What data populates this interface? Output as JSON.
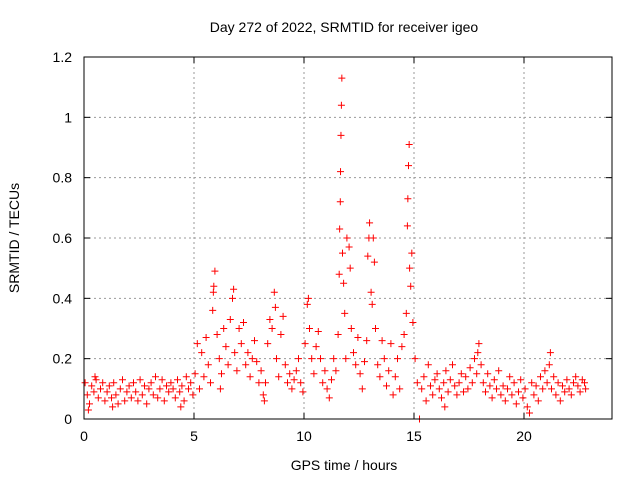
{
  "chart_data": {
    "type": "scatter",
    "title": "Day 272 of 2022, SRMTID for receiver igeo",
    "xlabel": "GPS time / hours",
    "ylabel": "SRMTID / TECUs",
    "xlim": [
      0,
      24
    ],
    "ylim": [
      0,
      1.2
    ],
    "xticks": [
      0,
      5,
      10,
      15,
      20
    ],
    "xtick_labels": [
      "0",
      "5",
      "10",
      "15",
      "20"
    ],
    "yticks": [
      0,
      0.2,
      0.4,
      0.6,
      0.8,
      1.0,
      1.2
    ],
    "ytick_labels": [
      "0",
      "0.2",
      "0.4",
      "0.6",
      "0.8",
      "1",
      "1.2"
    ],
    "grid": true,
    "marker": "+",
    "color": "#ff0000",
    "series": [
      {
        "name": "SRMTID",
        "points": [
          [
            0.05,
            0.12
          ],
          [
            0.15,
            0.08
          ],
          [
            0.25,
            0.05
          ],
          [
            0.35,
            0.11
          ],
          [
            0.45,
            0.09
          ],
          [
            0.55,
            0.13
          ],
          [
            0.65,
            0.07
          ],
          [
            0.75,
            0.1
          ],
          [
            0.85,
            0.12
          ],
          [
            0.95,
            0.06
          ],
          [
            0.2,
            0.03
          ],
          [
            0.5,
            0.14
          ],
          [
            1.05,
            0.09
          ],
          [
            1.15,
            0.11
          ],
          [
            1.25,
            0.07
          ],
          [
            1.35,
            0.12
          ],
          [
            1.45,
            0.08
          ],
          [
            1.55,
            0.05
          ],
          [
            1.65,
            0.1
          ],
          [
            1.75,
            0.13
          ],
          [
            1.85,
            0.06
          ],
          [
            1.95,
            0.09
          ],
          [
            1.3,
            0.04
          ],
          [
            2.05,
            0.11
          ],
          [
            2.15,
            0.07
          ],
          [
            2.25,
            0.12
          ],
          [
            2.35,
            0.09
          ],
          [
            2.45,
            0.06
          ],
          [
            2.55,
            0.13
          ],
          [
            2.65,
            0.08
          ],
          [
            2.75,
            0.11
          ],
          [
            2.85,
            0.05
          ],
          [
            2.95,
            0.1
          ],
          [
            3.05,
            0.12
          ],
          [
            3.15,
            0.08
          ],
          [
            3.25,
            0.14
          ],
          [
            3.35,
            0.07
          ],
          [
            3.45,
            0.1
          ],
          [
            3.55,
            0.13
          ],
          [
            3.65,
            0.06
          ],
          [
            3.75,
            0.11
          ],
          [
            3.85,
            0.09
          ],
          [
            3.95,
            0.12
          ],
          [
            4.05,
            0.1
          ],
          [
            4.15,
            0.07
          ],
          [
            4.25,
            0.13
          ],
          [
            4.35,
            0.09
          ],
          [
            4.45,
            0.11
          ],
          [
            4.55,
            0.06
          ],
          [
            4.65,
            0.14
          ],
          [
            4.75,
            0.1
          ],
          [
            4.85,
            0.12
          ],
          [
            4.95,
            0.08
          ],
          [
            4.4,
            0.04
          ],
          [
            5.05,
            0.15
          ],
          [
            5.15,
            0.25
          ],
          [
            5.25,
            0.1
          ],
          [
            5.35,
            0.22
          ],
          [
            5.45,
            0.14
          ],
          [
            5.55,
            0.27
          ],
          [
            5.65,
            0.18
          ],
          [
            5.75,
            0.12
          ],
          [
            5.85,
            0.36
          ],
          [
            5.9,
            0.44
          ],
          [
            5.95,
            0.49
          ],
          [
            5.88,
            0.42
          ],
          [
            6.05,
            0.28
          ],
          [
            6.15,
            0.2
          ],
          [
            6.25,
            0.15
          ],
          [
            6.35,
            0.3
          ],
          [
            6.45,
            0.24
          ],
          [
            6.55,
            0.18
          ],
          [
            6.65,
            0.33
          ],
          [
            6.75,
            0.4
          ],
          [
            6.8,
            0.43
          ],
          [
            6.85,
            0.22
          ],
          [
            6.95,
            0.16
          ],
          [
            6.2,
            0.1
          ],
          [
            7.05,
            0.3
          ],
          [
            7.15,
            0.25
          ],
          [
            7.25,
            0.32
          ],
          [
            7.35,
            0.18
          ],
          [
            7.45,
            0.22
          ],
          [
            7.55,
            0.14
          ],
          [
            7.65,
            0.2
          ],
          [
            7.75,
            0.26
          ],
          [
            7.85,
            0.19
          ],
          [
            7.95,
            0.12
          ],
          [
            8.05,
            0.16
          ],
          [
            8.15,
            0.08
          ],
          [
            8.25,
            0.12
          ],
          [
            8.35,
            0.25
          ],
          [
            8.45,
            0.33
          ],
          [
            8.55,
            0.3
          ],
          [
            8.65,
            0.42
          ],
          [
            8.7,
            0.37
          ],
          [
            8.75,
            0.2
          ],
          [
            8.85,
            0.14
          ],
          [
            8.95,
            0.28
          ],
          [
            8.2,
            0.06
          ],
          [
            9.05,
            0.34
          ],
          [
            9.15,
            0.18
          ],
          [
            9.25,
            0.12
          ],
          [
            9.35,
            0.15
          ],
          [
            9.45,
            0.1
          ],
          [
            9.55,
            0.13
          ],
          [
            9.65,
            0.16
          ],
          [
            9.75,
            0.2
          ],
          [
            9.85,
            0.12
          ],
          [
            9.95,
            0.09
          ],
          [
            10.05,
            0.25
          ],
          [
            10.15,
            0.38
          ],
          [
            10.2,
            0.4
          ],
          [
            10.25,
            0.3
          ],
          [
            10.35,
            0.2
          ],
          [
            10.45,
            0.15
          ],
          [
            10.55,
            0.24
          ],
          [
            10.65,
            0.29
          ],
          [
            10.75,
            0.2
          ],
          [
            10.85,
            0.12
          ],
          [
            10.95,
            0.16
          ],
          [
            11.05,
            0.1
          ],
          [
            11.15,
            0.07
          ],
          [
            11.25,
            0.13
          ],
          [
            11.35,
            0.2
          ],
          [
            11.45,
            0.16
          ],
          [
            11.55,
            0.28
          ],
          [
            11.6,
            0.48
          ],
          [
            11.62,
            0.63
          ],
          [
            11.65,
            0.72
          ],
          [
            11.66,
            0.82
          ],
          [
            11.68,
            0.94
          ],
          [
            11.7,
            1.04
          ],
          [
            11.72,
            1.13
          ],
          [
            11.75,
            0.55
          ],
          [
            11.8,
            0.45
          ],
          [
            11.85,
            0.35
          ],
          [
            11.9,
            0.2
          ],
          [
            11.95,
            0.6
          ],
          [
            12.05,
            0.57
          ],
          [
            12.1,
            0.5
          ],
          [
            12.15,
            0.3
          ],
          [
            12.25,
            0.22
          ],
          [
            12.35,
            0.18
          ],
          [
            12.45,
            0.27
          ],
          [
            12.55,
            0.15
          ],
          [
            12.65,
            0.1
          ],
          [
            12.75,
            0.19
          ],
          [
            12.85,
            0.26
          ],
          [
            12.9,
            0.54
          ],
          [
            12.95,
            0.6
          ],
          [
            12.98,
            0.65
          ],
          [
            13.05,
            0.42
          ],
          [
            13.1,
            0.38
          ],
          [
            13.15,
            0.6
          ],
          [
            13.2,
            0.52
          ],
          [
            13.25,
            0.3
          ],
          [
            13.35,
            0.18
          ],
          [
            13.45,
            0.14
          ],
          [
            13.55,
            0.26
          ],
          [
            13.65,
            0.2
          ],
          [
            13.75,
            0.11
          ],
          [
            13.85,
            0.16
          ],
          [
            13.95,
            0.25
          ],
          [
            14.05,
            0.08
          ],
          [
            14.15,
            0.14
          ],
          [
            14.25,
            0.2
          ],
          [
            14.35,
            0.1
          ],
          [
            14.45,
            0.24
          ],
          [
            14.55,
            0.28
          ],
          [
            14.65,
            0.35
          ],
          [
            14.7,
            0.64
          ],
          [
            14.72,
            0.73
          ],
          [
            14.75,
            0.84
          ],
          [
            14.78,
            0.91
          ],
          [
            14.8,
            0.5
          ],
          [
            14.85,
            0.44
          ],
          [
            14.9,
            0.55
          ],
          [
            14.95,
            0.32
          ],
          [
            15.05,
            0.2
          ],
          [
            15.15,
            0.12
          ],
          [
            15.25,
            0.0
          ],
          [
            15.35,
            0.1
          ],
          [
            15.45,
            0.14
          ],
          [
            15.55,
            0.06
          ],
          [
            15.65,
            0.18
          ],
          [
            15.75,
            0.11
          ],
          [
            15.85,
            0.08
          ],
          [
            15.95,
            0.13
          ],
          [
            16.05,
            0.15
          ],
          [
            16.15,
            0.1
          ],
          [
            16.25,
            0.07
          ],
          [
            16.35,
            0.12
          ],
          [
            16.45,
            0.16
          ],
          [
            16.55,
            0.09
          ],
          [
            16.65,
            0.13
          ],
          [
            16.75,
            0.18
          ],
          [
            16.85,
            0.11
          ],
          [
            16.95,
            0.08
          ],
          [
            16.4,
            0.04
          ],
          [
            17.05,
            0.12
          ],
          [
            17.15,
            0.15
          ],
          [
            17.25,
            0.09
          ],
          [
            17.35,
            0.14
          ],
          [
            17.45,
            0.1
          ],
          [
            17.55,
            0.17
          ],
          [
            17.65,
            0.12
          ],
          [
            17.75,
            0.2
          ],
          [
            17.85,
            0.15
          ],
          [
            17.95,
            0.25
          ],
          [
            17.9,
            0.22
          ],
          [
            18.05,
            0.18
          ],
          [
            18.15,
            0.12
          ],
          [
            18.25,
            0.09
          ],
          [
            18.35,
            0.15
          ],
          [
            18.45,
            0.11
          ],
          [
            18.55,
            0.07
          ],
          [
            18.65,
            0.13
          ],
          [
            18.75,
            0.1
          ],
          [
            18.85,
            0.16
          ],
          [
            18.95,
            0.08
          ],
          [
            19.05,
            0.11
          ],
          [
            19.15,
            0.06
          ],
          [
            19.25,
            0.1
          ],
          [
            19.35,
            0.14
          ],
          [
            19.45,
            0.08
          ],
          [
            19.55,
            0.12
          ],
          [
            19.65,
            0.05
          ],
          [
            19.75,
            0.09
          ],
          [
            19.85,
            0.13
          ],
          [
            19.95,
            0.07
          ],
          [
            20.05,
            0.1
          ],
          [
            20.15,
            0.04
          ],
          [
            20.25,
            0.02
          ],
          [
            20.35,
            0.12
          ],
          [
            20.45,
            0.08
          ],
          [
            20.55,
            0.11
          ],
          [
            20.65,
            0.06
          ],
          [
            20.75,
            0.14
          ],
          [
            20.85,
            0.1
          ],
          [
            20.95,
            0.16
          ],
          [
            21.05,
            0.12
          ],
          [
            21.15,
            0.18
          ],
          [
            21.2,
            0.22
          ],
          [
            21.25,
            0.1
          ],
          [
            21.35,
            0.14
          ],
          [
            21.45,
            0.08
          ],
          [
            21.55,
            0.12
          ],
          [
            21.65,
            0.06
          ],
          [
            21.75,
            0.11
          ],
          [
            21.85,
            0.09
          ],
          [
            21.95,
            0.13
          ],
          [
            22.05,
            0.1
          ],
          [
            22.15,
            0.08
          ],
          [
            22.25,
            0.12
          ],
          [
            22.35,
            0.14
          ],
          [
            22.45,
            0.11
          ],
          [
            22.55,
            0.09
          ],
          [
            22.65,
            0.13
          ],
          [
            22.75,
            0.12
          ],
          [
            22.8,
            0.1
          ]
        ]
      }
    ]
  }
}
